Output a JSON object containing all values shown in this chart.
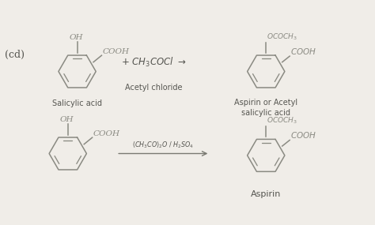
{
  "bg_color": "#f0ede8",
  "fig_width": 4.74,
  "fig_height": 2.85,
  "dpi": 100,
  "label_cd": "(cd)",
  "salicylic_label": "Salicylic acid",
  "acetyl_label": "Acetyl chloride",
  "aspirin_label1": "Aspirin or Acetyl",
  "aspirin_label2": "salicylic acid",
  "aspirin_label3": "Aspirin",
  "structure_color": "#8a8a82",
  "text_color": "#555550",
  "line_color": "#7a7a72"
}
